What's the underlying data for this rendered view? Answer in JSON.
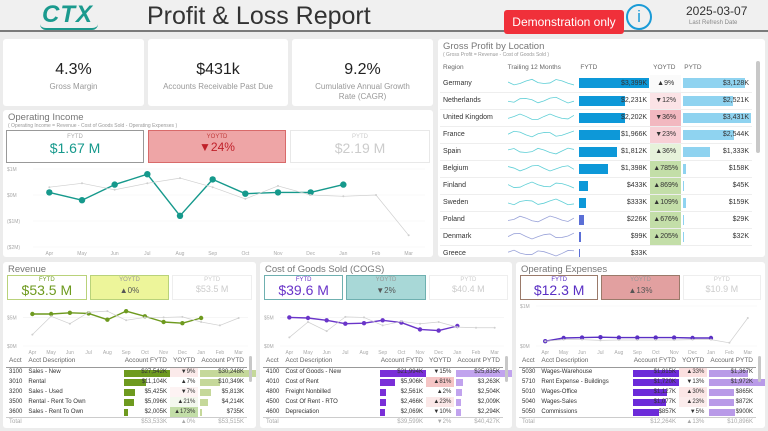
{
  "header": {
    "logo": "CTX",
    "title": "Profit & Loss Report",
    "demo_badge": "Demonstration only",
    "info_icon": "i",
    "refresh_date": "2025-03-07",
    "refresh_label": "Last Refresh Date"
  },
  "kpis": [
    {
      "value": "4.3%",
      "label": "Gross Margin"
    },
    {
      "value": "$431k",
      "label": "Accounts Receivable Past Due"
    },
    {
      "value": "9.2%",
      "label": "Cumulative Annual Growth Rate (CAGR)"
    }
  ],
  "months": [
    "Apr",
    "May",
    "Jun",
    "Jul",
    "Aug",
    "Sep",
    "Oct",
    "Nov",
    "Dec",
    "Jan",
    "Feb",
    "Mar"
  ],
  "operating_income": {
    "title": "Operating Income",
    "subtitle": "( Operating Income = Revenue - Cost of Goods Sold - Operating Expenses )",
    "fytd_label": "FYTD",
    "fytd": "$1.67 M",
    "yoytd_label": "YOYTD",
    "yoytd": "▼24%",
    "pytd_label": "PYTD",
    "pytd": "$2.19 M",
    "y_ticks": [
      "$1M",
      "$0M",
      "($1M)",
      "($2M)"
    ],
    "colors": {
      "current": "#16998c",
      "prior": "#c8c8c8",
      "box_yoy": "#eea5a6"
    }
  },
  "gross_profit": {
    "title": "Gross Profit by Location",
    "subtitle": "( Gross Profit = Revenue - Cost of Goods Sold )",
    "columns": [
      "Region",
      "Trailing 12 Months",
      "FYTD",
      "YOYTD",
      "PYTD"
    ],
    "rows": [
      {
        "region": "Germany",
        "fytd": "$3,399K",
        "fytd_v": 3399,
        "yoytd": "▲9%",
        "pytd": "$3,128K",
        "pytd_v": 3128,
        "yoy_color": "#fafafa"
      },
      {
        "region": "Netherlands",
        "fytd": "$2,231K",
        "fytd_v": 2231,
        "yoytd": "▼12%",
        "pytd": "$2,521K",
        "pytd_v": 2521,
        "yoy_color": "#fbe3e6"
      },
      {
        "region": "United Kingdom",
        "fytd": "$2,202K",
        "fytd_v": 2202,
        "yoytd": "▼36%",
        "pytd": "$3,431K",
        "pytd_v": 3431,
        "yoy_color": "#f2b8c0"
      },
      {
        "region": "France",
        "fytd": "$1,966K",
        "fytd_v": 1966,
        "yoytd": "▼23%",
        "pytd": "$2,544K",
        "pytd_v": 2544,
        "yoy_color": "#f8d0d6"
      },
      {
        "region": "Spain",
        "fytd": "$1,812K",
        "fytd_v": 1812,
        "yoytd": "▲36%",
        "pytd": "$1,333K",
        "pytd_v": 1333,
        "yoy_color": "#e6f2da"
      },
      {
        "region": "Belgium",
        "fytd": "$1,398K",
        "fytd_v": 1398,
        "yoytd": "▲785%",
        "pytd": "$158K",
        "pytd_v": 158,
        "yoy_color": "#c3dea8"
      },
      {
        "region": "Finland",
        "fytd": "$433K",
        "fytd_v": 433,
        "yoytd": "▲869%",
        "pytd": "$45K",
        "pytd_v": 45,
        "yoy_color": "#c3dea8"
      },
      {
        "region": "Sweden",
        "fytd": "$333K",
        "fytd_v": 333,
        "yoytd": "▲109%",
        "pytd": "$159K",
        "pytd_v": 159,
        "yoy_color": "#c3dea8"
      },
      {
        "region": "Poland",
        "fytd": "$226K",
        "fytd_v": 226,
        "yoytd": "▲676%",
        "pytd": "$29K",
        "pytd_v": 29,
        "yoy_color": "#c3dea8"
      },
      {
        "region": "Denmark",
        "fytd": "$99K",
        "fytd_v": 99,
        "yoytd": "▲205%",
        "pytd": "$32K",
        "pytd_v": 32,
        "yoy_color": "#c3dea8"
      },
      {
        "region": "Greece",
        "fytd": "$33K",
        "fytd_v": 33,
        "yoytd": "",
        "pytd": "",
        "pytd_v": 0,
        "yoy_color": "#fff"
      }
    ]
  },
  "revenue": {
    "title": "Revenue",
    "fytd_label": "FYTD",
    "fytd": "$53.5 M",
    "yoytd_label": "YOYTD",
    "yoytd": "▲0%",
    "pytd_label": "PYTD",
    "pytd": "$53.5 M",
    "y_ticks": [
      "$5M",
      "$0M"
    ],
    "colors": {
      "current": "#6e9a1f",
      "bar": "#6e9a1f",
      "pbar": "#c5d89a",
      "box": "#edf59a",
      "box_border": "#b9d27a"
    },
    "columns": [
      "Acct",
      "Acct Description",
      "Account FYTD",
      "YOYTD",
      "Account PYTD"
    ],
    "rows": [
      {
        "acct": "3100",
        "desc": "Sales - New",
        "fytd": "$27,542K",
        "fytd_v": 27542,
        "yoy": "▼9%",
        "pytd": "$30,248K",
        "pytd_v": 30248,
        "yoy_color": "#fbeaea"
      },
      {
        "acct": "3010",
        "desc": "Rental",
        "fytd": "$11,104K",
        "fytd_v": 11104,
        "yoy": "▲7%",
        "pytd": "$10,349K",
        "pytd_v": 10349,
        "yoy_color": "#fff"
      },
      {
        "acct": "3200",
        "desc": "Sales - Used",
        "fytd": "$5,425K",
        "fytd_v": 5425,
        "yoy": "▼7%",
        "pytd": "$5,813K",
        "pytd_v": 5813,
        "yoy_color": "#fdf3f3"
      },
      {
        "acct": "3500",
        "desc": "Rental - Rent To Own",
        "fytd": "$5,096K",
        "fytd_v": 5096,
        "yoy": "▲21%",
        "pytd": "$4,214K",
        "pytd_v": 4214,
        "yoy_color": "#f3f8ee"
      },
      {
        "acct": "3600",
        "desc": "Sales - Rent To Own",
        "fytd": "$2,005K",
        "fytd_v": 2005,
        "yoy": "▲173%",
        "pytd": "$735K",
        "pytd_v": 735,
        "yoy_color": "#c3dea8"
      }
    ],
    "total": {
      "label": "Total",
      "fytd": "$53,533K",
      "yoy": "▲0%",
      "pytd": "$53,515K"
    }
  },
  "cogs": {
    "title": "Cost of Goods Sold (COGS)",
    "fytd_label": "FYTD",
    "fytd": "$39.6 M",
    "yoytd_label": "YOYTD",
    "yoytd": "▼2%",
    "pytd_label": "PYTD",
    "pytd": "$40.4 M",
    "y_ticks": [
      "$5M",
      "$0M"
    ],
    "colors": {
      "current": "#6a35c9",
      "bar": "#7a2fd8",
      "pbar": "#c1a3ee",
      "box": "#a8d8d7",
      "box_border": "#6fb0b0"
    },
    "columns": [
      "Acct",
      "Acct Description",
      "Account FYTD",
      "YOYTD",
      "Account PYTD"
    ],
    "rows": [
      {
        "acct": "4100",
        "desc": "Cost of Goods - New",
        "fytd": "$21,994K",
        "fytd_v": 21994,
        "yoy": "▼15%",
        "pytd": "$25,835K",
        "pytd_v": 25835,
        "yoy_color": "#fff"
      },
      {
        "acct": "4010",
        "desc": "Cost of Rent",
        "fytd": "$5,906K",
        "fytd_v": 5906,
        "yoy": "▲81%",
        "pytd": "$3,263K",
        "pytd_v": 3263,
        "yoy_color": "#f5c5c5"
      },
      {
        "acct": "4800",
        "desc": "Freight Nonbilled",
        "fytd": "$2,561K",
        "fytd_v": 2561,
        "yoy": "▲2%",
        "pytd": "$2,504K",
        "pytd_v": 2504,
        "yoy_color": "#fff"
      },
      {
        "acct": "4500",
        "desc": "Cost Of Rent - RTO",
        "fytd": "$2,466K",
        "fytd_v": 2466,
        "yoy": "▲23%",
        "pytd": "$2,009K",
        "pytd_v": 2009,
        "yoy_color": "#fbe8e8"
      },
      {
        "acct": "4600",
        "desc": "Depreciation",
        "fytd": "$2,069K",
        "fytd_v": 2069,
        "yoy": "▼10%",
        "pytd": "$2,294K",
        "pytd_v": 2294,
        "yoy_color": "#fff"
      }
    ],
    "total": {
      "label": "Total",
      "fytd": "$39,599K",
      "yoy": "▼2%",
      "pytd": "$40,427K"
    }
  },
  "opex": {
    "title": "Operating Expenses",
    "fytd_label": "FYTD",
    "fytd": "$12.3 M",
    "yoytd_label": "YOYTD",
    "yoytd": "▲13%",
    "pytd_label": "PYTD",
    "pytd": "$10.9 M",
    "y_ticks": [
      "$1M",
      "$0M"
    ],
    "colors": {
      "current": "#5a2fc4",
      "bar": "#6c2bd9",
      "pbar": "#b99ae8",
      "box": "#e2a0a0",
      "box_border": "#9a7a6a"
    },
    "columns": [
      "Acct",
      "Acct Description",
      "Account FYTD",
      "YOYTD",
      "Account PYTD"
    ],
    "rows": [
      {
        "acct": "5030",
        "desc": "Wages-Warehouse",
        "fytd": "$1,815K",
        "fytd_v": 1815,
        "yoy": "▲33%",
        "pytd": "$1,367K",
        "pytd_v": 1367,
        "yoy_color": "#fbe0e0"
      },
      {
        "acct": "5710",
        "desc": "Rent Expense - Buildings",
        "fytd": "$1,720K",
        "fytd_v": 1720,
        "yoy": "▼13%",
        "pytd": "$1,972K",
        "pytd_v": 1972,
        "yoy_color": "#fff"
      },
      {
        "acct": "5010",
        "desc": "Wages-Office",
        "fytd": "$1,127K",
        "fytd_v": 1127,
        "yoy": "▲30%",
        "pytd": "$865K",
        "pytd_v": 865,
        "yoy_color": "#fbe6e6"
      },
      {
        "acct": "5040",
        "desc": "Wages-Sales",
        "fytd": "$1,077K",
        "fytd_v": 1077,
        "yoy": "▲23%",
        "pytd": "$872K",
        "pytd_v": 872,
        "yoy_color": "#fbecec"
      },
      {
        "acct": "5050",
        "desc": "Commissions",
        "fytd": "$857K",
        "fytd_v": 857,
        "yoy": "▼5%",
        "pytd": "$900K",
        "pytd_v": 900,
        "yoy_color": "#fff"
      }
    ],
    "total": {
      "label": "Total",
      "fytd": "$12,264K",
      "yoy": "▲13%",
      "pytd": "$10,896K"
    }
  },
  "chart_data": [
    {
      "type": "line",
      "title": "Operating Income",
      "x": [
        "Apr",
        "May",
        "Jun",
        "Jul",
        "Aug",
        "Sep",
        "Oct",
        "Nov",
        "Dec",
        "Jan",
        "Feb",
        "Mar"
      ],
      "ylim": [
        -2,
        1
      ],
      "series": [
        {
          "name": "FYTD",
          "values": [
            0.1,
            -0.2,
            0.4,
            0.8,
            -0.8,
            0.6,
            0.05,
            0.1,
            0.1,
            0.4,
            null,
            null
          ]
        },
        {
          "name": "PYTD",
          "values": [
            0.3,
            0.45,
            0.2,
            0.45,
            0.65,
            0.3,
            -0.15,
            0.35,
            0.0,
            -0.05,
            0.0,
            -1.55
          ]
        }
      ]
    },
    {
      "type": "line",
      "title": "Revenue",
      "x": [
        "Apr",
        "May",
        "Jun",
        "Jul",
        "Aug",
        "Sep",
        "Oct",
        "Nov",
        "Dec",
        "Jan",
        "Feb",
        "Mar"
      ],
      "ylim": [
        0,
        7
      ],
      "series": [
        {
          "name": "FYTD",
          "values": [
            5.6,
            5.6,
            5.8,
            5.7,
            4.6,
            6.1,
            5.2,
            4.2,
            4.0,
            4.9,
            null,
            null
          ]
        },
        {
          "name": "PYTD",
          "values": [
            2.0,
            5.2,
            3.9,
            5.9,
            6.1,
            4.5,
            5.0,
            5.0,
            5.1,
            4.2,
            3.6,
            4.9
          ]
        }
      ]
    },
    {
      "type": "line",
      "title": "Cost of Goods Sold (COGS)",
      "x": [
        "Apr",
        "May",
        "Jun",
        "Jul",
        "Aug",
        "Sep",
        "Oct",
        "Nov",
        "Dec",
        "Jan",
        "Feb",
        "Mar"
      ],
      "ylim": [
        0,
        7
      ],
      "series": [
        {
          "name": "FYTD",
          "values": [
            5.0,
            4.9,
            4.5,
            3.9,
            4.0,
            4.5,
            4.1,
            2.9,
            2.7,
            3.5,
            null,
            null
          ]
        },
        {
          "name": "PYTD",
          "values": [
            1.5,
            4.2,
            2.6,
            5.1,
            5.0,
            3.6,
            4.3,
            3.9,
            4.2,
            3.3,
            3.2,
            3.2
          ]
        }
      ]
    },
    {
      "type": "line",
      "title": "Operating Expenses",
      "x": [
        "Apr",
        "May",
        "Jun",
        "Jul",
        "Aug",
        "Sep",
        "Oct",
        "Nov",
        "Dec",
        "Jan",
        "Feb",
        "Mar"
      ],
      "ylim": [
        0,
        1
      ],
      "series": [
        {
          "name": "FYTD",
          "values": [
            0.12,
            0.2,
            0.21,
            0.22,
            0.21,
            0.21,
            0.21,
            0.21,
            0.2,
            0.2,
            null,
            null
          ]
        },
        {
          "name": "PYTD",
          "values": [
            0.12,
            0.16,
            0.16,
            0.14,
            0.15,
            0.15,
            0.15,
            0.15,
            0.16,
            0.16,
            0.08,
            0.7
          ]
        }
      ]
    }
  ]
}
